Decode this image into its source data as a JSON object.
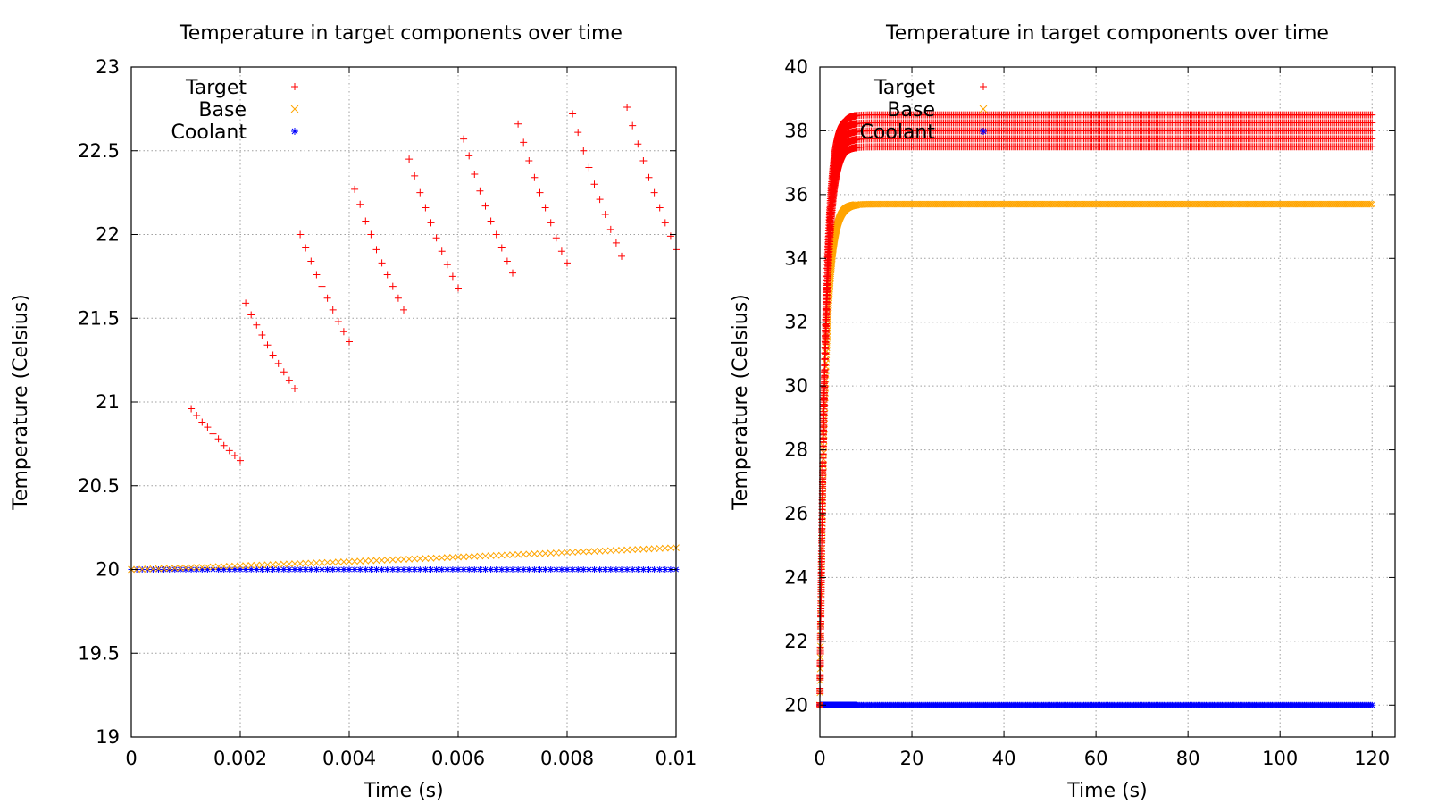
{
  "chart_data": [
    {
      "type": "scatter",
      "title": "Temperature in target components over time",
      "xlabel": "Time (s)",
      "ylabel": "Temperature (Celsius)",
      "xlim": [
        0,
        0.01
      ],
      "ylim": [
        19,
        23
      ],
      "xticks": [
        0,
        0.002,
        0.004,
        0.006,
        0.008,
        0.01
      ],
      "xtick_labels": [
        "0",
        "0.002",
        "0.004",
        "0.006",
        "0.008",
        "0.01"
      ],
      "yticks": [
        19,
        19.5,
        20,
        20.5,
        21,
        21.5,
        22,
        22.5,
        23
      ],
      "ytick_labels": [
        "19",
        "19.5",
        "20",
        "20.5",
        "21",
        "21.5",
        "22",
        "22.5",
        "23"
      ],
      "grid": true,
      "legend": "top-left",
      "series": [
        {
          "name": "Target",
          "marker": "plus",
          "color": "#ff0000",
          "x": [
            0.0011,
            0.0012,
            0.0013,
            0.0014,
            0.0015,
            0.0016,
            0.0017,
            0.0018,
            0.0019,
            0.002,
            0.0021,
            0.0022,
            0.0023,
            0.0024,
            0.0025,
            0.0026,
            0.0027,
            0.0028,
            0.0029,
            0.003,
            0.0031,
            0.0032,
            0.0033,
            0.0034,
            0.0035,
            0.0036,
            0.0037,
            0.0038,
            0.0039,
            0.004,
            0.0041,
            0.0042,
            0.0043,
            0.0044,
            0.0045,
            0.0046,
            0.0047,
            0.0048,
            0.0049,
            0.005,
            0.0051,
            0.0052,
            0.0053,
            0.0054,
            0.0055,
            0.0056,
            0.0057,
            0.0058,
            0.0059,
            0.006,
            0.0061,
            0.0062,
            0.0063,
            0.0064,
            0.0065,
            0.0066,
            0.0067,
            0.0068,
            0.0069,
            0.007,
            0.0071,
            0.0072,
            0.0073,
            0.0074,
            0.0075,
            0.0076,
            0.0077,
            0.0078,
            0.0079,
            0.008,
            0.0081,
            0.0082,
            0.0083,
            0.0084,
            0.0085,
            0.0086,
            0.0087,
            0.0088,
            0.0089,
            0.009,
            0.0091,
            0.0092,
            0.0093,
            0.0094,
            0.0095,
            0.0096,
            0.0097,
            0.0098,
            0.0099,
            0.01
          ],
          "y": [
            20.96,
            20.92,
            20.88,
            20.85,
            20.81,
            20.78,
            20.74,
            20.71,
            20.68,
            20.65,
            21.59,
            21.52,
            21.46,
            21.4,
            21.34,
            21.28,
            21.23,
            21.18,
            21.13,
            21.08,
            22.0,
            21.92,
            21.84,
            21.76,
            21.69,
            21.62,
            21.55,
            21.48,
            21.42,
            21.36,
            22.27,
            22.18,
            22.08,
            22.0,
            21.91,
            21.83,
            21.76,
            21.69,
            21.62,
            21.55,
            22.45,
            22.35,
            22.25,
            22.16,
            22.07,
            21.98,
            21.9,
            21.82,
            21.75,
            21.68,
            22.57,
            22.47,
            22.36,
            22.26,
            22.17,
            22.08,
            22.0,
            21.92,
            21.84,
            21.77,
            22.66,
            22.55,
            22.44,
            22.34,
            22.25,
            22.16,
            22.07,
            21.98,
            21.9,
            21.83,
            22.72,
            22.61,
            22.5,
            22.4,
            22.3,
            22.21,
            22.12,
            22.03,
            21.95,
            21.87,
            22.76,
            22.65,
            22.54,
            22.44,
            22.34,
            22.25,
            22.16,
            22.07,
            21.99,
            21.91
          ]
        },
        {
          "name": "Base",
          "marker": "x",
          "color": "#ffa500",
          "x_start": 0,
          "x_step": 0.0001,
          "count": 101,
          "y_start": 20.0,
          "y_end": 20.13,
          "shape": "linear-ramp"
        },
        {
          "name": "Coolant",
          "marker": "star",
          "color": "#0000ff",
          "x_start": 0,
          "x_step": 0.0001,
          "count": 101,
          "y_start": 20.0,
          "y_end": 20.0,
          "shape": "constant"
        }
      ]
    },
    {
      "type": "scatter",
      "title": "Temperature in target components over time",
      "xlabel": "Time (s)",
      "ylabel": "Temperature (Celsius)",
      "xlim": [
        0,
        125
      ],
      "ylim": [
        19,
        40
      ],
      "xticks": [
        0,
        20,
        40,
        60,
        80,
        100,
        120
      ],
      "xtick_labels": [
        "0",
        "20",
        "40",
        "60",
        "80",
        "100",
        "120"
      ],
      "yticks": [
        20,
        22,
        24,
        26,
        28,
        30,
        32,
        34,
        36,
        38,
        40
      ],
      "ytick_labels": [
        "20",
        "22",
        "24",
        "26",
        "28",
        "30",
        "32",
        "34",
        "36",
        "38",
        "40"
      ],
      "grid": true,
      "legend": "top-left",
      "series": [
        {
          "name": "Target",
          "marker": "plus",
          "color": "#ff0000",
          "x_range": [
            0,
            120
          ],
          "y_start": 20.0,
          "y_settle": 38.0,
          "oscillation_band": [
            37.5,
            38.5
          ],
          "time_constant": 1.2,
          "shape": "saturating-oscillating"
        },
        {
          "name": "Base",
          "marker": "x",
          "color": "#ffa500",
          "x_range": [
            0,
            120
          ],
          "y_start": 20.0,
          "y_settle": 35.7,
          "time_constant": 1.2,
          "shape": "saturating"
        },
        {
          "name": "Coolant",
          "marker": "star",
          "color": "#0000ff",
          "x_range": [
            0,
            120
          ],
          "y_start": 20.0,
          "y_settle": 20.0,
          "shape": "constant"
        }
      ]
    }
  ]
}
